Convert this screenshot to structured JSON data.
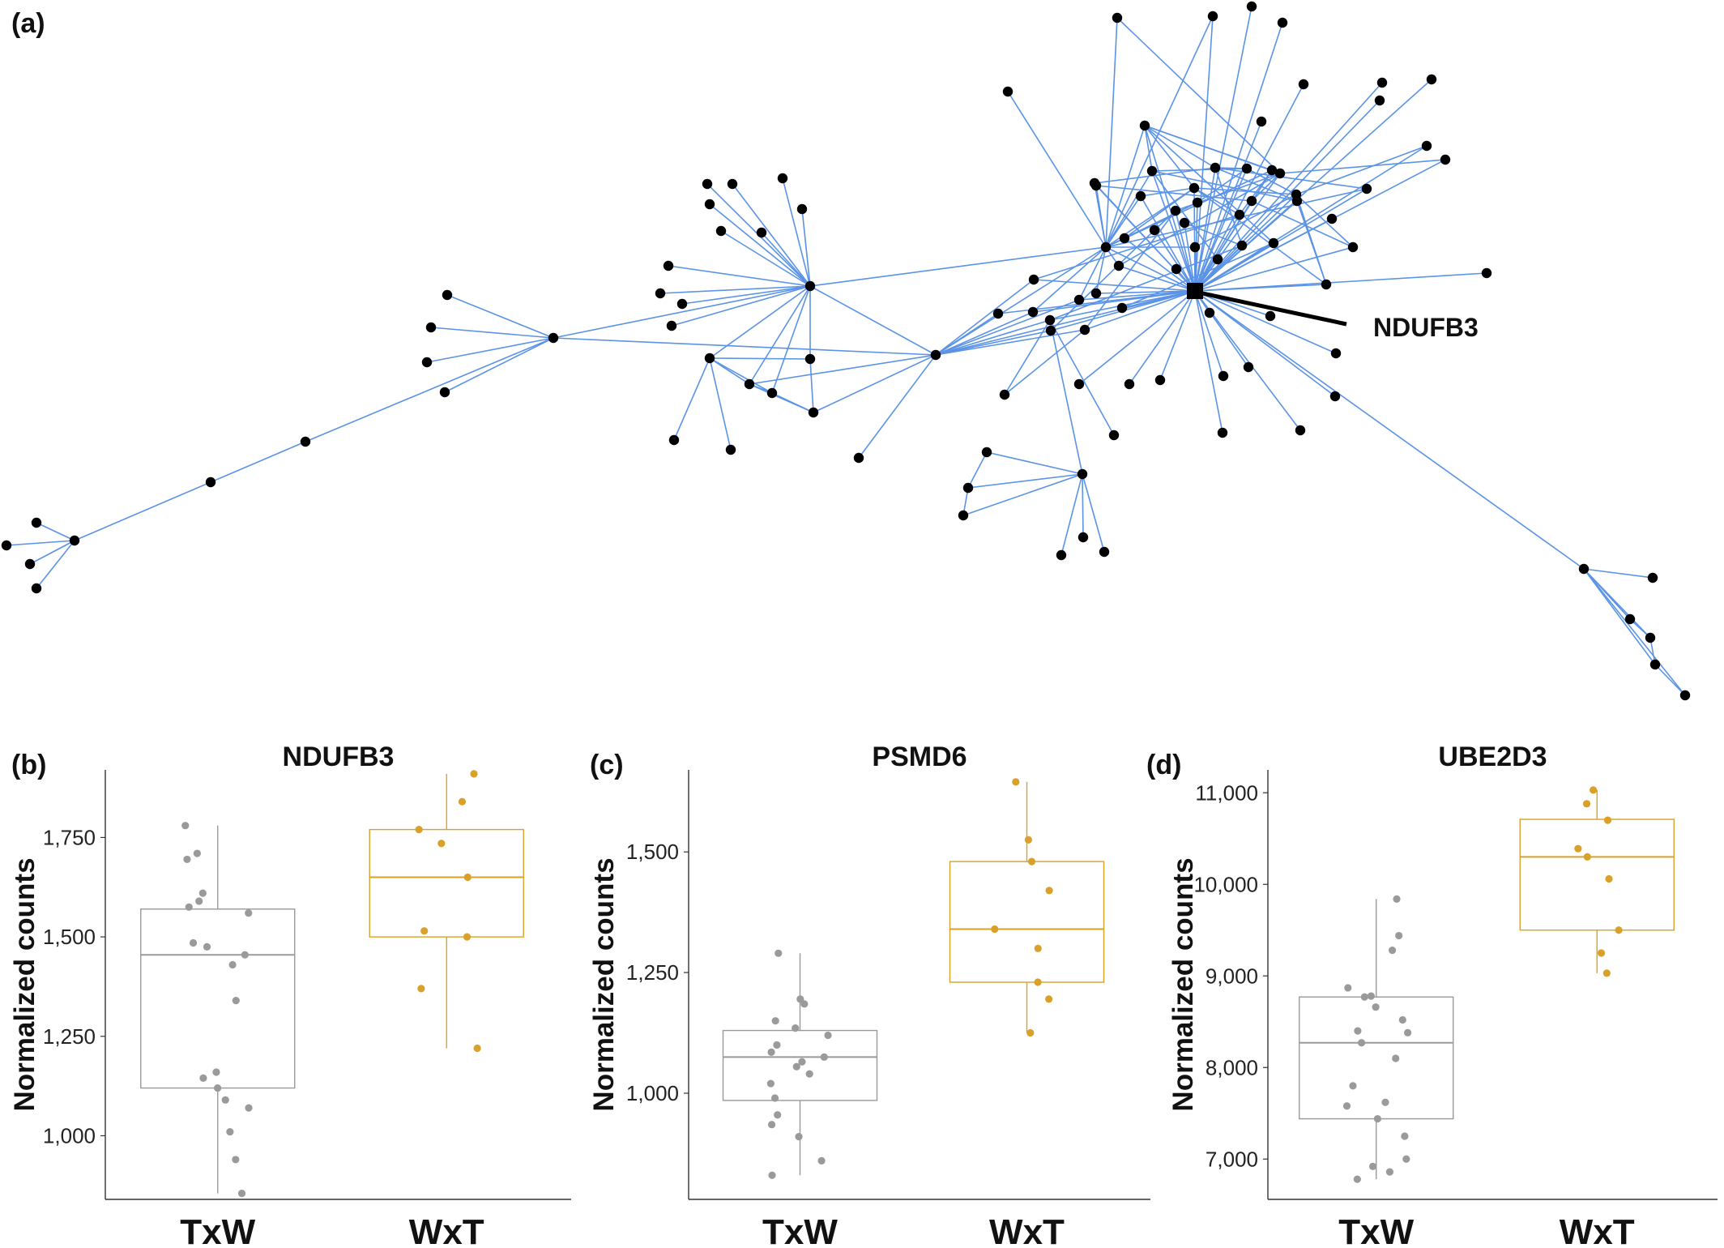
{
  "network": {
    "panel_label": "(a)",
    "highlight_label": "NDUFB3",
    "edge_color": "#5b93e6",
    "node_color": "#000000"
  },
  "colors": {
    "TxW": "#9a9a9a",
    "WxT": "#d9a12a"
  },
  "chart_data": [
    {
      "type": "box",
      "panel_label": "(b)",
      "title": "NDUFB3",
      "xlabel": "",
      "ylabel": "Normalized counts",
      "categories": [
        "TxW",
        "WxT"
      ],
      "yticks": [
        1000,
        1250,
        1500,
        1750
      ],
      "ytick_labels": [
        "1,000",
        "1,250",
        "1,500",
        "1,750"
      ],
      "ylim": [
        840,
        1920
      ],
      "series": [
        {
          "name": "TxW",
          "box": {
            "whisker_low": 855,
            "q1": 1120,
            "median": 1455,
            "q3": 1570,
            "whisker_high": 1780
          },
          "points": [
            1780,
            1710,
            1695,
            1610,
            1590,
            1575,
            1560,
            1485,
            1475,
            1455,
            1430,
            1340,
            1160,
            1145,
            1120,
            1090,
            1070,
            1010,
            940,
            855
          ]
        },
        {
          "name": "WxT",
          "box": {
            "whisker_low": 1220,
            "q1": 1500,
            "median": 1650,
            "q3": 1770,
            "whisker_high": 1910
          },
          "points": [
            1910,
            1840,
            1770,
            1735,
            1650,
            1515,
            1500,
            1370,
            1220
          ]
        }
      ]
    },
    {
      "type": "box",
      "panel_label": "(c)",
      "title": "PSMD6",
      "xlabel": "",
      "ylabel": "Normalized counts",
      "categories": [
        "TxW",
        "WxT"
      ],
      "yticks": [
        1000,
        1250,
        1500
      ],
      "ytick_labels": [
        "1,000",
        "1,250",
        "1,500"
      ],
      "ylim": [
        780,
        1670
      ],
      "series": [
        {
          "name": "TxW",
          "box": {
            "whisker_low": 830,
            "q1": 985,
            "median": 1075,
            "q3": 1130,
            "whisker_high": 1290
          },
          "points": [
            1290,
            1195,
            1185,
            1150,
            1135,
            1120,
            1100,
            1085,
            1075,
            1065,
            1055,
            1040,
            1020,
            990,
            955,
            935,
            910,
            860,
            830
          ]
        },
        {
          "name": "WxT",
          "box": {
            "whisker_low": 1125,
            "q1": 1230,
            "median": 1340,
            "q3": 1480,
            "whisker_high": 1645
          },
          "points": [
            1645,
            1525,
            1480,
            1420,
            1340,
            1300,
            1230,
            1195,
            1125
          ]
        }
      ]
    },
    {
      "type": "box",
      "panel_label": "(d)",
      "title": "UBE2D3",
      "xlabel": "",
      "ylabel": "Normalized counts",
      "categories": [
        "TxW",
        "WxT"
      ],
      "yticks": [
        7000,
        8000,
        9000,
        10000,
        11000
      ],
      "ytick_labels": [
        "7,000",
        "8,000",
        "9,000",
        "10,000",
        "11,000"
      ],
      "ylim": [
        6560,
        11250
      ],
      "series": [
        {
          "name": "TxW",
          "box": {
            "whisker_low": 6780,
            "q1": 7440,
            "median": 8270,
            "q3": 8770,
            "whisker_high": 9840
          },
          "points": [
            9840,
            9440,
            9280,
            8870,
            8780,
            8770,
            8660,
            8520,
            8400,
            8380,
            8270,
            8100,
            7800,
            7620,
            7580,
            7440,
            7250,
            7000,
            6920,
            6860,
            6780
          ]
        },
        {
          "name": "WxT",
          "box": {
            "whisker_low": 9030,
            "q1": 9500,
            "median": 10300,
            "q3": 10710,
            "whisker_high": 11030
          },
          "points": [
            11030,
            10880,
            10700,
            10390,
            10300,
            10060,
            9500,
            9250,
            9030
          ]
        }
      ]
    }
  ]
}
